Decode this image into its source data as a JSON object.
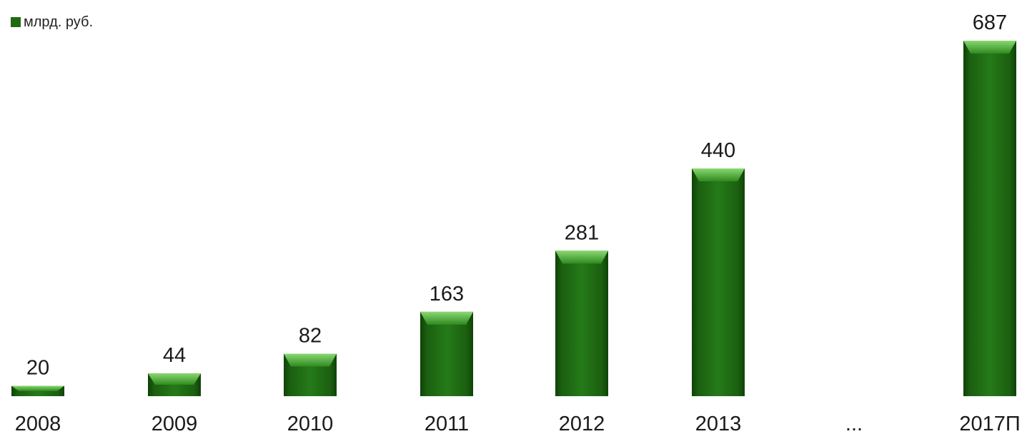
{
  "chart_data": {
    "type": "bar",
    "categories": [
      "2008",
      "2009",
      "2010",
      "2011",
      "2012",
      "2013",
      "...",
      "2017П"
    ],
    "values": [
      20,
      44,
      82,
      163,
      281,
      440,
      null,
      687
    ],
    "data_labels": [
      "20",
      "44",
      "82",
      "163",
      "281",
      "440",
      "",
      "687"
    ],
    "series": [
      {
        "name": "млрд. руб.",
        "values": [
          20,
          44,
          82,
          163,
          281,
          440,
          null,
          687
        ]
      }
    ],
    "title": "",
    "xlabel": "",
    "ylabel": "",
    "ylim": [
      0,
      687
    ],
    "grid": false,
    "legend_position": "top-left",
    "colors": {
      "bar_main": "#1f6a12",
      "bar_dark": "#0f4207",
      "bar_light": "#3e9a2b",
      "bar_highlight": "#7fcf65"
    }
  },
  "legend": {
    "label": "млрд. руб."
  }
}
